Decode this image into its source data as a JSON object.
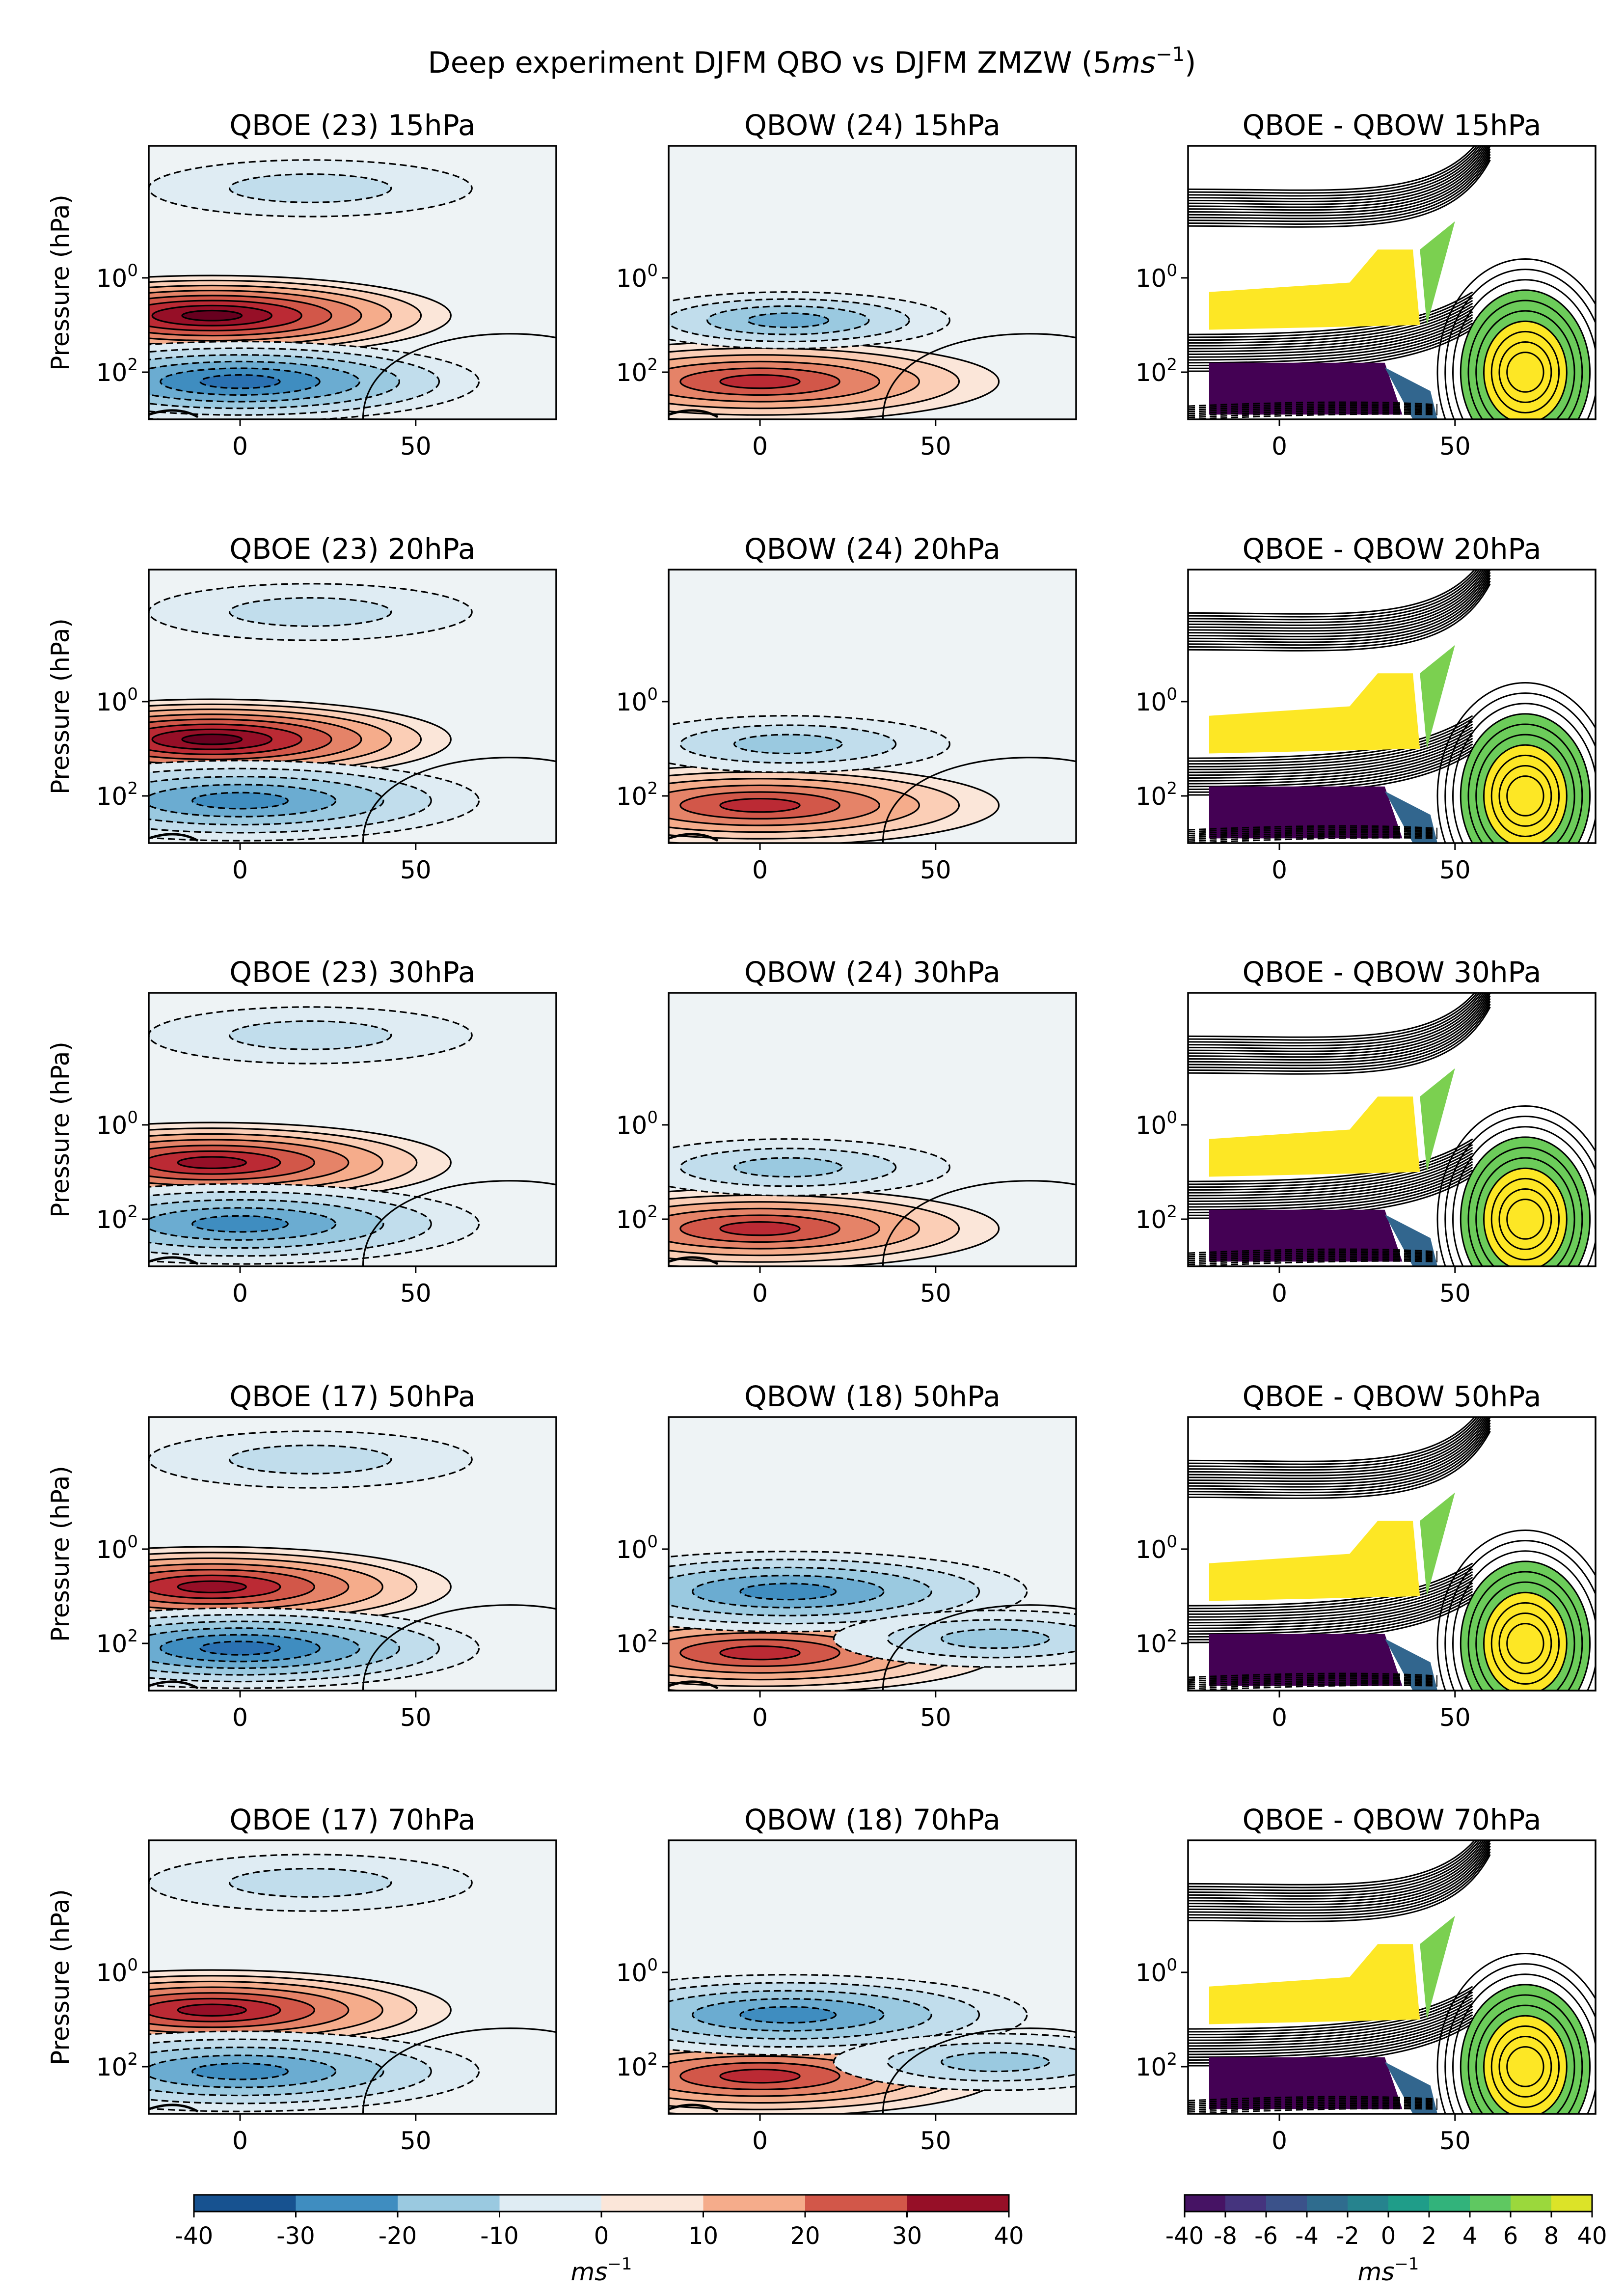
{
  "figure": {
    "title": "Deep experiment DJFM QBO vs DJFM ZMZW (5",
    "title_unit": "ms",
    "title_exp": "−1",
    "title_close": ")"
  },
  "axes_common": {
    "ylabel": "Pressure (hPa)",
    "xticks": [
      "0",
      "50"
    ],
    "ytick_base": "10",
    "ytick_exps": [
      "0",
      "2"
    ]
  },
  "chart_data": [
    {
      "type": "heatmap",
      "title": "QBOE (23) 15hPa",
      "row": 0,
      "col": 0,
      "ylabel": "Pressure (hPa)",
      "xlim": [
        -26,
        90
      ],
      "ylim_log10": [
        3,
        -2.8
      ],
      "cmap": "RdBu_r",
      "levels_step": 5,
      "features": [
        {
          "x": -8,
          "y": 0.8,
          "value": 38
        },
        {
          "x": 20,
          "y": -1.9,
          "value": -12
        },
        {
          "x": 0,
          "y": 2.2,
          "value": -28
        }
      ]
    },
    {
      "type": "heatmap",
      "title": "QBOW (24) 15hPa",
      "row": 0,
      "col": 1,
      "xlim": [
        -26,
        90
      ],
      "ylim_log10": [
        3,
        -2.8
      ],
      "cmap": "RdBu_r",
      "levels_step": 5,
      "features": [
        {
          "x": 0,
          "y": 2.2,
          "value": 28
        },
        {
          "x": 8,
          "y": 0.9,
          "value": -18
        }
      ]
    },
    {
      "type": "heatmap",
      "title": "QBOE - QBOW 15hPa",
      "row": 0,
      "col": 2,
      "xlim": [
        -26,
        90
      ],
      "ylim_log10": [
        3,
        -2.8
      ],
      "cmap": "viridis",
      "features": [
        {
          "x": 10,
          "y": 0.6,
          "value": 40
        },
        {
          "x": 0,
          "y": 2.4,
          "value": -40
        },
        {
          "x": 70,
          "y": 2.0,
          "value": 40
        }
      ]
    },
    {
      "type": "heatmap",
      "title": "QBOE (23) 20hPa",
      "row": 1,
      "col": 0,
      "ylabel": "Pressure (hPa)",
      "xlim": [
        -26,
        90
      ],
      "ylim_log10": [
        3,
        -2.8
      ],
      "cmap": "RdBu_r",
      "levels_step": 5,
      "features": [
        {
          "x": -8,
          "y": 0.8,
          "value": 38
        },
        {
          "x": 20,
          "y": -1.9,
          "value": -12
        },
        {
          "x": 0,
          "y": 2.1,
          "value": -26
        }
      ]
    },
    {
      "type": "heatmap",
      "title": "QBOW (24) 20hPa",
      "row": 1,
      "col": 1,
      "xlim": [
        -26,
        90
      ],
      "ylim_log10": [
        3,
        -2.8
      ],
      "cmap": "RdBu_r",
      "levels_step": 5,
      "features": [
        {
          "x": 0,
          "y": 2.2,
          "value": 28
        },
        {
          "x": 8,
          "y": 0.9,
          "value": -16
        }
      ]
    },
    {
      "type": "heatmap",
      "title": "QBOE - QBOW 20hPa",
      "row": 1,
      "col": 2,
      "xlim": [
        -26,
        90
      ],
      "ylim_log10": [
        3,
        -2.8
      ],
      "cmap": "viridis",
      "features": [
        {
          "x": 10,
          "y": 0.6,
          "value": 40
        },
        {
          "x": 0,
          "y": 2.4,
          "value": -40
        },
        {
          "x": 70,
          "y": 2.0,
          "value": 40
        }
      ]
    },
    {
      "type": "heatmap",
      "title": "QBOE (23) 30hPa",
      "row": 2,
      "col": 0,
      "ylabel": "Pressure (hPa)",
      "xlim": [
        -26,
        90
      ],
      "ylim_log10": [
        3,
        -2.8
      ],
      "cmap": "RdBu_r",
      "levels_step": 5,
      "features": [
        {
          "x": -8,
          "y": 0.8,
          "value": 37
        },
        {
          "x": 20,
          "y": -1.9,
          "value": -12
        },
        {
          "x": 0,
          "y": 2.1,
          "value": -24
        }
      ]
    },
    {
      "type": "heatmap",
      "title": "QBOW (24) 30hPa",
      "row": 2,
      "col": 1,
      "xlim": [
        -26,
        90
      ],
      "ylim_log10": [
        3,
        -2.8
      ],
      "cmap": "RdBu_r",
      "levels_step": 5,
      "features": [
        {
          "x": 0,
          "y": 2.2,
          "value": 28
        },
        {
          "x": 8,
          "y": 0.9,
          "value": -14
        }
      ]
    },
    {
      "type": "heatmap",
      "title": "QBOE - QBOW 30hPa",
      "row": 2,
      "col": 2,
      "xlim": [
        -26,
        90
      ],
      "ylim_log10": [
        3,
        -2.8
      ],
      "cmap": "viridis",
      "features": [
        {
          "x": 10,
          "y": 0.6,
          "value": 40
        },
        {
          "x": 0,
          "y": 2.4,
          "value": -40
        },
        {
          "x": 70,
          "y": 2.0,
          "value": 40
        }
      ]
    },
    {
      "type": "heatmap",
      "title": "QBOE (17) 50hPa",
      "row": 3,
      "col": 0,
      "ylabel": "Pressure (hPa)",
      "xlim": [
        -26,
        90
      ],
      "ylim_log10": [
        3,
        -2.8
      ],
      "cmap": "RdBu_r",
      "levels_step": 5,
      "features": [
        {
          "x": -8,
          "y": 0.8,
          "value": 34
        },
        {
          "x": 20,
          "y": -1.9,
          "value": -10
        },
        {
          "x": 0,
          "y": 2.1,
          "value": -28
        }
      ]
    },
    {
      "type": "heatmap",
      "title": "QBOW (18) 50hPa",
      "row": 3,
      "col": 1,
      "xlim": [
        -26,
        90
      ],
      "ylim_log10": [
        3,
        -2.8
      ],
      "cmap": "RdBu_r",
      "levels_step": 5,
      "features": [
        {
          "x": 0,
          "y": 2.2,
          "value": 30
        },
        {
          "x": 8,
          "y": 0.9,
          "value": -24
        },
        {
          "x": 67,
          "y": 1.9,
          "value": -14
        }
      ]
    },
    {
      "type": "heatmap",
      "title": "QBOE - QBOW 50hPa",
      "row": 3,
      "col": 2,
      "xlim": [
        -26,
        90
      ],
      "ylim_log10": [
        3,
        -2.8
      ],
      "cmap": "viridis",
      "features": [
        {
          "x": 10,
          "y": 0.6,
          "value": 40
        },
        {
          "x": 0,
          "y": 2.4,
          "value": -40
        },
        {
          "x": 70,
          "y": 2.0,
          "value": 40
        }
      ]
    },
    {
      "type": "heatmap",
      "title": "QBOE (17) 70hPa",
      "row": 4,
      "col": 0,
      "ylabel": "Pressure (hPa)",
      "xlim": [
        -26,
        90
      ],
      "ylim_log10": [
        3,
        -2.8
      ],
      "cmap": "RdBu_r",
      "levels_step": 5,
      "features": [
        {
          "x": -8,
          "y": 0.8,
          "value": 34
        },
        {
          "x": 20,
          "y": -1.9,
          "value": -10
        },
        {
          "x": 0,
          "y": 2.1,
          "value": -26
        }
      ]
    },
    {
      "type": "heatmap",
      "title": "QBOW (18) 70hPa",
      "row": 4,
      "col": 1,
      "xlim": [
        -26,
        90
      ],
      "ylim_log10": [
        3,
        -2.8
      ],
      "cmap": "RdBu_r",
      "levels_step": 5,
      "features": [
        {
          "x": 0,
          "y": 2.2,
          "value": 32
        },
        {
          "x": 8,
          "y": 0.9,
          "value": -24
        },
        {
          "x": 67,
          "y": 1.9,
          "value": -14
        }
      ]
    },
    {
      "type": "heatmap",
      "title": "QBOE - QBOW 70hPa",
      "row": 4,
      "col": 2,
      "xlim": [
        -26,
        90
      ],
      "ylim_log10": [
        3,
        -2.8
      ],
      "cmap": "viridis",
      "features": [
        {
          "x": 10,
          "y": 0.6,
          "value": 40
        },
        {
          "x": 0,
          "y": 2.4,
          "value": -40
        },
        {
          "x": 70,
          "y": 2.0,
          "value": 40
        }
      ]
    }
  ],
  "colorbars": [
    {
      "cmap": "RdBu_r",
      "ticks": [
        "-40",
        "-30",
        "-20",
        "-10",
        "0",
        "10",
        "20",
        "30",
        "40"
      ],
      "label": "ms",
      "label_exp": "−1"
    },
    {
      "cmap": "viridis",
      "ticks": [
        "-40",
        "-8",
        "-6",
        "-4",
        "-2",
        "0",
        "2",
        "4",
        "6",
        "8",
        "40"
      ],
      "label": "ms",
      "label_exp": "−1"
    }
  ]
}
